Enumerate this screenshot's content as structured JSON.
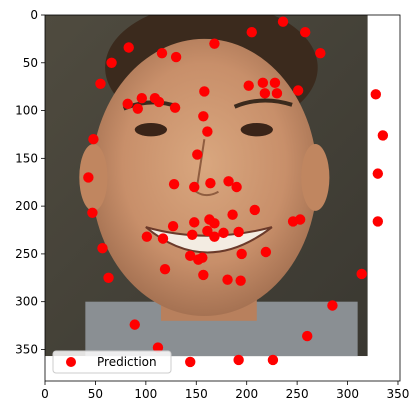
{
  "chart_data": {
    "type": "scatter",
    "background": "photo-face",
    "xlim": [
      0,
      352
    ],
    "ylim": [
      383,
      0
    ],
    "image_extent": {
      "x": [
        0,
        320
      ],
      "y": [
        357,
        0
      ]
    },
    "x_ticks": [
      0,
      50,
      100,
      150,
      200,
      250,
      300,
      350
    ],
    "y_ticks": [
      0,
      50,
      100,
      150,
      200,
      250,
      300,
      350
    ],
    "x_tick_labels": [
      "0",
      "50",
      "100",
      "150",
      "200",
      "250",
      "300",
      "350"
    ],
    "y_tick_labels": [
      "0",
      "50",
      "100",
      "150",
      "200",
      "250",
      "300",
      "350"
    ],
    "legend": {
      "label": "Prediction",
      "placement": "lower-left"
    },
    "marker_color": "#ff0000",
    "series": [
      {
        "name": "Prediction",
        "points": [
          [
            236,
            7
          ],
          [
            205,
            18
          ],
          [
            258,
            18
          ],
          [
            168,
            30
          ],
          [
            83,
            34
          ],
          [
            116,
            40
          ],
          [
            130,
            44
          ],
          [
            273,
            40
          ],
          [
            66,
            50
          ],
          [
            55,
            72
          ],
          [
            202,
            74
          ],
          [
            216,
            71
          ],
          [
            228,
            71
          ],
          [
            218,
            82
          ],
          [
            230,
            82
          ],
          [
            251,
            79
          ],
          [
            158,
            80
          ],
          [
            82,
            93
          ],
          [
            92,
            98
          ],
          [
            96,
            87
          ],
          [
            109,
            87
          ],
          [
            113,
            91
          ],
          [
            129,
            97
          ],
          [
            157,
            106
          ],
          [
            161,
            122
          ],
          [
            48,
            130
          ],
          [
            328,
            83
          ],
          [
            335,
            126
          ],
          [
            151,
            146
          ],
          [
            330,
            166
          ],
          [
            43,
            170
          ],
          [
            128,
            177
          ],
          [
            148,
            180
          ],
          [
            164,
            176
          ],
          [
            182,
            174
          ],
          [
            190,
            180
          ],
          [
            47,
            207
          ],
          [
            208,
            204
          ],
          [
            186,
            209
          ],
          [
            163,
            214
          ],
          [
            148,
            217
          ],
          [
            168,
            218
          ],
          [
            161,
            226
          ],
          [
            127,
            221
          ],
          [
            101,
            232
          ],
          [
            117,
            234
          ],
          [
            146,
            230
          ],
          [
            177,
            228
          ],
          [
            168,
            232
          ],
          [
            192,
            227
          ],
          [
            57,
            244
          ],
          [
            144,
            252
          ],
          [
            156,
            254
          ],
          [
            152,
            256
          ],
          [
            195,
            250
          ],
          [
            219,
            248
          ],
          [
            246,
            216
          ],
          [
            253,
            214
          ],
          [
            330,
            216
          ],
          [
            63,
            275
          ],
          [
            119,
            266
          ],
          [
            157,
            272
          ],
          [
            181,
            277
          ],
          [
            194,
            278
          ],
          [
            314,
            271
          ],
          [
            285,
            304
          ],
          [
            89,
            324
          ],
          [
            260,
            336
          ],
          [
            112,
            348
          ],
          [
            144,
            363
          ],
          [
            192,
            361
          ],
          [
            226,
            361
          ]
        ]
      }
    ]
  }
}
